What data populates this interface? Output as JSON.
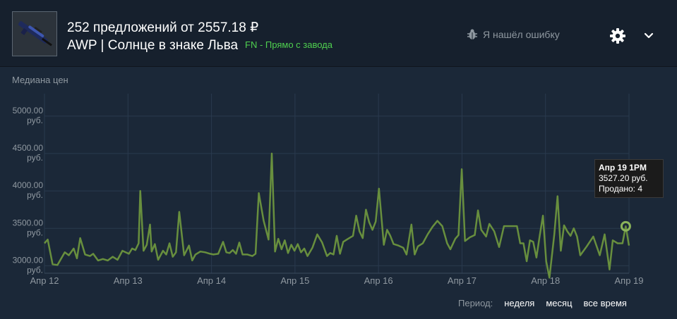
{
  "header": {
    "offers_line": "252 предложений от 2557.18 ₽",
    "item_name": "AWP | Солнце в знаке Льва",
    "quality": "FN - Прямо с завода",
    "bug_report": "Я нашёл ошибку",
    "thumbnail_icon": "awp-rifle-icon",
    "settings_icon": "gear-icon",
    "expand_icon": "chevron-down-icon"
  },
  "chart_title": "Медиана цен",
  "chart_data": {
    "type": "line",
    "title": "Медиана цен",
    "ylim": [
      2900,
      5300
    ],
    "y_ticks": [
      {
        "value": 3000,
        "line1": "3000.00",
        "line2": "руб."
      },
      {
        "value": 3500,
        "line1": "3500.00",
        "line2": "руб."
      },
      {
        "value": 4000,
        "line1": "4000.00",
        "line2": "руб."
      },
      {
        "value": 4500,
        "line1": "4500.00",
        "line2": "руб."
      },
      {
        "value": 5000,
        "line1": "5000.00",
        "line2": "руб."
      }
    ],
    "x_ticks": [
      "Апр 12",
      "Апр 13",
      "Апр 14",
      "Апр 15",
      "Апр 16",
      "Апр 17",
      "Апр 18",
      "Апр 19"
    ],
    "x_range_days": [
      0,
      7
    ],
    "series": [
      {
        "color": "#688f3e",
        "points": [
          [
            0.0,
            3300
          ],
          [
            0.04,
            3350
          ],
          [
            0.1,
            3020
          ],
          [
            0.16,
            3010
          ],
          [
            0.25,
            3180
          ],
          [
            0.3,
            3140
          ],
          [
            0.36,
            3230
          ],
          [
            0.4,
            3100
          ],
          [
            0.44,
            3370
          ],
          [
            0.5,
            3150
          ],
          [
            0.56,
            3130
          ],
          [
            0.6,
            3160
          ],
          [
            0.66,
            3070
          ],
          [
            0.72,
            3090
          ],
          [
            0.78,
            3070
          ],
          [
            0.84,
            3120
          ],
          [
            0.9,
            3080
          ],
          [
            0.96,
            3200
          ],
          [
            1.0,
            3180
          ],
          [
            1.04,
            3160
          ],
          [
            1.08,
            3230
          ],
          [
            1.12,
            3210
          ],
          [
            1.16,
            3300
          ],
          [
            1.18,
            4000
          ],
          [
            1.22,
            3200
          ],
          [
            1.26,
            3280
          ],
          [
            1.3,
            3550
          ],
          [
            1.32,
            3190
          ],
          [
            1.36,
            3290
          ],
          [
            1.4,
            3080
          ],
          [
            1.46,
            3200
          ],
          [
            1.5,
            3150
          ],
          [
            1.54,
            3300
          ],
          [
            1.58,
            3120
          ],
          [
            1.62,
            3180
          ],
          [
            1.66,
            3720
          ],
          [
            1.72,
            3140
          ],
          [
            1.78,
            3270
          ],
          [
            1.82,
            3070
          ],
          [
            1.86,
            3150
          ],
          [
            1.92,
            3190
          ],
          [
            1.98,
            3180
          ],
          [
            2.04,
            3160
          ],
          [
            2.08,
            3150
          ],
          [
            2.14,
            3160
          ],
          [
            2.2,
            3320
          ],
          [
            2.24,
            3180
          ],
          [
            2.28,
            3170
          ],
          [
            2.32,
            3210
          ],
          [
            2.36,
            3160
          ],
          [
            2.4,
            3310
          ],
          [
            2.44,
            3150
          ],
          [
            2.5,
            3150
          ],
          [
            2.56,
            3130
          ],
          [
            2.6,
            3160
          ],
          [
            2.64,
            3970
          ],
          [
            2.7,
            3600
          ],
          [
            2.76,
            3350
          ],
          [
            2.8,
            4500
          ],
          [
            2.84,
            3190
          ],
          [
            2.88,
            3360
          ],
          [
            2.92,
            3220
          ],
          [
            2.96,
            3340
          ],
          [
            3.0,
            3170
          ],
          [
            3.04,
            3280
          ],
          [
            3.08,
            3200
          ],
          [
            3.12,
            3290
          ],
          [
            3.16,
            3180
          ],
          [
            3.2,
            3230
          ],
          [
            3.24,
            3130
          ],
          [
            3.3,
            3240
          ],
          [
            3.36,
            3420
          ],
          [
            3.42,
            3310
          ],
          [
            3.48,
            3130
          ],
          [
            3.52,
            3170
          ],
          [
            3.56,
            3150
          ],
          [
            3.6,
            3400
          ],
          [
            3.64,
            3160
          ],
          [
            3.68,
            3320
          ],
          [
            3.74,
            3360
          ],
          [
            3.8,
            3400
          ],
          [
            3.84,
            3670
          ],
          [
            3.88,
            3460
          ],
          [
            3.92,
            3370
          ],
          [
            3.96,
            3750
          ],
          [
            4.0,
            3580
          ],
          [
            4.04,
            3480
          ],
          [
            4.08,
            3590
          ],
          [
            4.12,
            4030
          ],
          [
            4.18,
            3280
          ],
          [
            4.22,
            3480
          ],
          [
            4.26,
            3400
          ],
          [
            4.3,
            3290
          ],
          [
            4.36,
            3270
          ],
          [
            4.42,
            3240
          ],
          [
            4.46,
            3150
          ],
          [
            4.52,
            3550
          ],
          [
            4.56,
            3150
          ],
          [
            4.6,
            3260
          ],
          [
            4.66,
            3300
          ],
          [
            4.72,
            3420
          ],
          [
            4.78,
            3520
          ],
          [
            4.84,
            3600
          ],
          [
            4.9,
            3530
          ],
          [
            4.96,
            3300
          ],
          [
            5.0,
            3220
          ],
          [
            5.06,
            3360
          ],
          [
            5.1,
            3410
          ],
          [
            5.14,
            4290
          ],
          [
            5.18,
            3330
          ],
          [
            5.24,
            3380
          ],
          [
            5.3,
            3410
          ],
          [
            5.34,
            3740
          ],
          [
            5.38,
            3480
          ],
          [
            5.44,
            3390
          ],
          [
            5.48,
            3560
          ],
          [
            5.54,
            3460
          ],
          [
            5.6,
            3250
          ],
          [
            5.66,
            3530
          ],
          [
            5.72,
            3530
          ],
          [
            5.78,
            3530
          ],
          [
            5.82,
            3530
          ],
          [
            5.86,
            3300
          ],
          [
            5.9,
            3300
          ],
          [
            5.94,
            3060
          ],
          [
            5.98,
            3340
          ],
          [
            6.02,
            3320
          ],
          [
            6.06,
            3110
          ],
          [
            6.1,
            3400
          ],
          [
            6.14,
            3670
          ],
          [
            6.18,
            3060
          ],
          [
            6.22,
            2840
          ],
          [
            6.28,
            3420
          ],
          [
            6.32,
            3930
          ],
          [
            6.36,
            3200
          ],
          [
            6.4,
            3540
          ],
          [
            6.44,
            3460
          ],
          [
            6.48,
            3400
          ],
          [
            6.52,
            3500
          ],
          [
            6.56,
            3390
          ],
          [
            6.6,
            3140
          ],
          [
            6.68,
            3260
          ],
          [
            6.76,
            3390
          ],
          [
            6.84,
            3140
          ],
          [
            6.9,
            3420
          ],
          [
            6.96,
            2950
          ],
          [
            7.0,
            3340
          ],
          [
            7.06,
            3300
          ],
          [
            7.12,
            3300
          ],
          [
            7.16,
            3527
          ],
          [
            7.2,
            3270
          ]
        ]
      }
    ],
    "highlight": {
      "x": 7.16,
      "y": 3527.2
    }
  },
  "tooltip": {
    "date": "Апр 19 1PM",
    "price": "3527.20 руб.",
    "sold": "Продано: 4"
  },
  "period": {
    "label": "Период:",
    "options": [
      "неделя",
      "месяц",
      "все время"
    ]
  }
}
